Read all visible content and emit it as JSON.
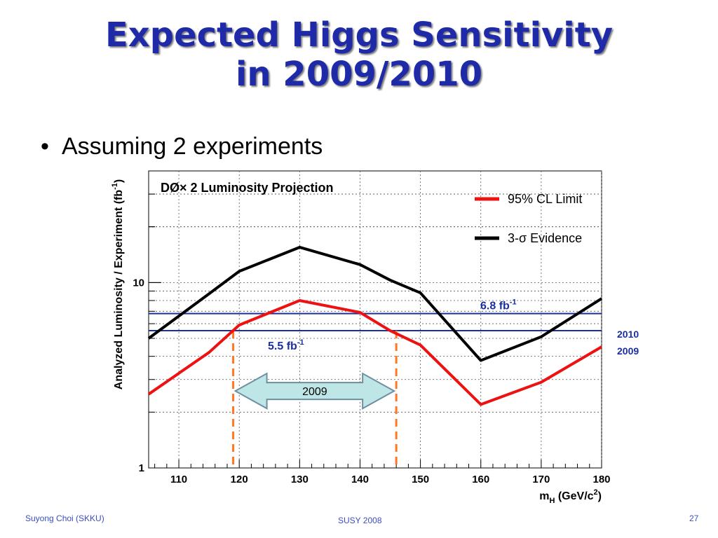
{
  "slide": {
    "title_line1": "Expected Higgs Sensitivity",
    "title_line2": "in 2009/2010",
    "bullet": "Assuming 2 experiments",
    "side_label_2010": "2010",
    "side_label_2009": "2009",
    "footer_left": "Suyong Choi (SKKU)",
    "footer_center": "SUSY 2008",
    "footer_right": "27"
  },
  "chart_data": {
    "type": "line",
    "title": "DØ× 2 Luminosity Projection",
    "xlabel": "m_H (GeV/c^2)",
    "xlabel_parts": {
      "m": "m",
      "sub": "H",
      "unit": " (GeV/c",
      "sup": "2",
      "close": ")"
    },
    "ylabel": "Analyzed Luminosity / Experiment (fb^-1)",
    "ylabel_parts": {
      "text": "Analyzed Luminosity / Experiment (fb",
      "sup": "-1",
      "close": ")"
    },
    "xlim": [
      105,
      180
    ],
    "ylim": [
      1,
      40
    ],
    "yscale": "log",
    "grid": true,
    "x_ticks": [
      110,
      120,
      130,
      140,
      150,
      160,
      170,
      180
    ],
    "y_ticks": [
      1,
      10
    ],
    "x": [
      105,
      115,
      120,
      130,
      140,
      145,
      150,
      160,
      170,
      180
    ],
    "series": [
      {
        "name": "95% CL Limit",
        "color": "#ee1111",
        "values": [
          2.5,
          4.2,
          5.9,
          8.0,
          6.9,
          5.5,
          4.6,
          2.2,
          2.9,
          4.5
        ]
      },
      {
        "name": "3-σ Evidence",
        "color": "#000000",
        "values": [
          5.0,
          8.7,
          11.5,
          15.5,
          12.5,
          10.3,
          8.8,
          3.8,
          5.1,
          8.2
        ]
      }
    ],
    "hlines": [
      {
        "y": 6.8,
        "color": "#1a2fa0",
        "label": "6.8 fb",
        "sup": "-1"
      },
      {
        "y": 5.5,
        "color": "#1a2fa0",
        "label": "5.5 fb",
        "sup": "-1"
      }
    ],
    "vlines": [
      {
        "x": 119,
        "color": "#ff7722"
      },
      {
        "x": 146,
        "color": "#ff7722"
      }
    ],
    "arrow": {
      "x_range": [
        119,
        146
      ],
      "y": 2.6,
      "label": "2009",
      "fill": "#bfe6e6"
    },
    "legend_position": "top-right"
  }
}
